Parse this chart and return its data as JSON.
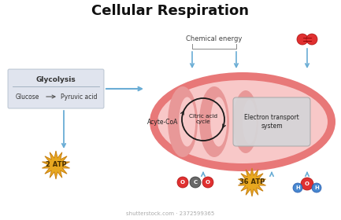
{
  "title": "Cellular Respiration",
  "title_fontsize": 13,
  "title_fontweight": "bold",
  "bg_color": "#ffffff",
  "arrow_color": "#6aadd5",
  "glycolysis_box_fill": "#c8cfe0",
  "glycolysis_box_edge": "#9aaabb",
  "glycolysis_label": "Glycolysis",
  "glucose_label": "Glucose",
  "pyruvic_label": "Pyruvic acid",
  "atp2_label": "2 ATP",
  "atp36_label": "36 ATP",
  "acyl_label": "Acyte-CoA",
  "citric_label": "Citric acid\ncycle",
  "electron_label": "Electron transport\nsystem",
  "chem_label": "Chemical energy",
  "mito_outer_color": "#e87878",
  "mito_inner_color": "#f8c8c8",
  "mito_matrix_color": "#fde8e8",
  "mito_cristae_color": "#e89898",
  "mito_cristae_light": "#f8d0d0",
  "electron_box_color": "#d5d5d8",
  "electron_box_edge": "#aaaaaa",
  "atp_burst_color": "#e8a820",
  "atp_burst_edge": "#c88010",
  "atp_text_color": "#4a3000",
  "co2_red": "#e03030",
  "co2_gray": "#686868",
  "h2o_blue": "#4888d0",
  "h2o_red": "#e03030",
  "o2_red": "#e03030",
  "dark_arrow": "#444444",
  "shutterstock_text": "shutterstock.com · 2372599365",
  "watermark_color": "#aaaaaa"
}
